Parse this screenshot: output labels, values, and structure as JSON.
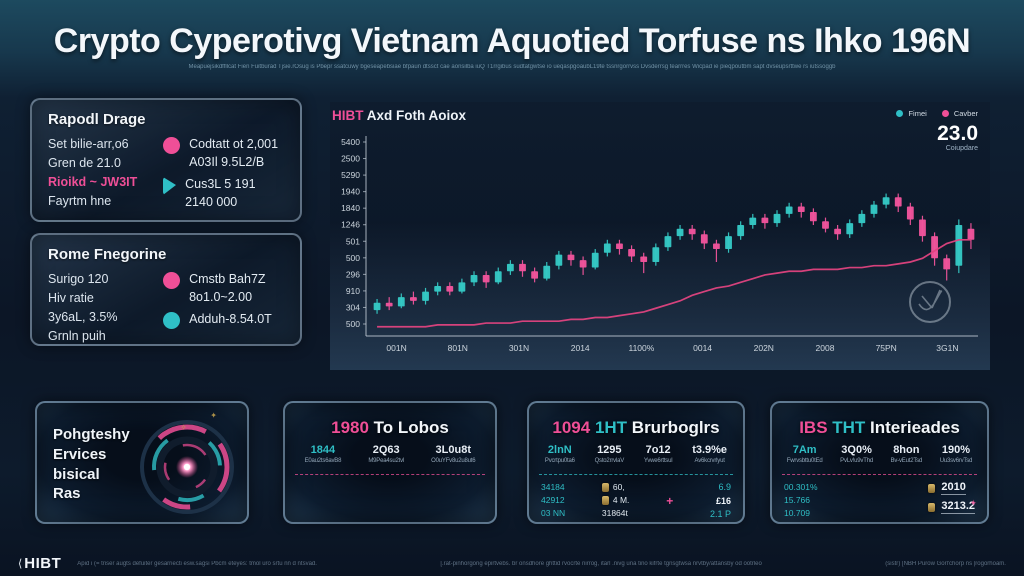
{
  "colors": {
    "pink": "#ef4f97",
    "teal": "#2fbfc6",
    "gold": "#c9a54e",
    "up": "#35c8c4",
    "down": "#f0549b",
    "line": "#e0437f"
  },
  "header": {
    "title": "Crypto Cyperotivg Vietnam Aquotied Torfuse ns Ihko 196N",
    "subtitle": "Meapuejsikdffllcat Fien Fuitburad Tjsie.rOsug is Pbepr ssatcuwy bgeseapebsiae bfpaun dtssct cae aonsilba iuQ T1rrgibus sudtatgwtse io ueqaspgoaubL19te tssnrgorrvss Dvsderrsg tearrres Wicpad ie pieqpoutbm sapt dvseupsrttwe rs iutssoggb"
  },
  "panels_left": [
    {
      "title": "Rapodl Drage",
      "left_lines": [
        {
          "text": "Set bilie-arr,o6",
          "color": "light"
        },
        {
          "text": "Gren de 21.0",
          "color": "light"
        },
        {
          "text": "Rioikd ~ JW3IT",
          "color": "pink"
        },
        {
          "text": "Fayrtm hne",
          "color": "light"
        }
      ],
      "right_rows": [
        {
          "icon": "pink-dot",
          "lines": [
            "Codtatt ot 2,001",
            "A03Il 9.5L2/B"
          ]
        },
        {
          "icon": "teal-triangle",
          "lines": [
            "Cus3L 5 191",
            "2140 000"
          ]
        }
      ]
    },
    {
      "title": "Rome Fnegorine",
      "left_lines": [
        {
          "text": "Surigo 120",
          "color": "light"
        },
        {
          "text": "Hiv ratie",
          "color": "light"
        },
        {
          "text": "3y6aL, 3.5%",
          "color": "light"
        },
        {
          "text": "Grnln puih",
          "color": "light"
        }
      ],
      "right_rows": [
        {
          "icon": "pink-dot",
          "lines": [
            "Cmstb Bah7Z",
            "8o1.0~2.00"
          ]
        },
        {
          "icon": "teal-dot",
          "lines": [
            "Adduh-8.54.0T"
          ]
        }
      ]
    }
  ],
  "chart": {
    "title_accent": "HIBT",
    "title_rest": " Axd Foth Aoiox",
    "legend": [
      {
        "label": "Fimei",
        "color": "#2fbfc6"
      },
      {
        "label": "Cavber",
        "color": "#ef4f97"
      }
    ],
    "big_value": "23.0",
    "big_value_caption": "Coiupdare"
  },
  "chart_data": {
    "type": "candlestick",
    "title": "HIBT Axd Foth Aoiox",
    "y_ticks": [
      "5400",
      "2500",
      "5290",
      "1940",
      "1840",
      "1246",
      "501",
      "500",
      "296",
      "910",
      "304",
      "500"
    ],
    "x_ticks": [
      "001N",
      "801N",
      "301N",
      "2014",
      "1100%",
      "0014",
      "202N",
      "2008",
      "75PN",
      "3G1N"
    ],
    "candles": [
      [
        14,
        18,
        20,
        12
      ],
      [
        18,
        16,
        21,
        14
      ],
      [
        16,
        21,
        23,
        15
      ],
      [
        21,
        19,
        24,
        17
      ],
      [
        19,
        24,
        26,
        17
      ],
      [
        24,
        27,
        29,
        22
      ],
      [
        27,
        24,
        29,
        22
      ],
      [
        24,
        29,
        31,
        23
      ],
      [
        29,
        33,
        35,
        27
      ],
      [
        33,
        29,
        35,
        26
      ],
      [
        29,
        35,
        37,
        28
      ],
      [
        35,
        39,
        41,
        33
      ],
      [
        39,
        35,
        41,
        32
      ],
      [
        35,
        31,
        37,
        29
      ],
      [
        31,
        38,
        40,
        30
      ],
      [
        38,
        44,
        46,
        36
      ],
      [
        44,
        41,
        46,
        38
      ],
      [
        41,
        37,
        43,
        33
      ],
      [
        37,
        45,
        47,
        36
      ],
      [
        45,
        50,
        52,
        43
      ],
      [
        50,
        47,
        52,
        44
      ],
      [
        47,
        43,
        49,
        40
      ],
      [
        43,
        40,
        45,
        34
      ],
      [
        40,
        48,
        50,
        38
      ],
      [
        48,
        54,
        56,
        46
      ],
      [
        54,
        58,
        60,
        52
      ],
      [
        58,
        55,
        60,
        52
      ],
      [
        55,
        50,
        57,
        47
      ],
      [
        50,
        47,
        52,
        40
      ],
      [
        47,
        54,
        56,
        45
      ],
      [
        54,
        60,
        62,
        52
      ],
      [
        60,
        64,
        66,
        58
      ],
      [
        64,
        61,
        66,
        58
      ],
      [
        61,
        66,
        68,
        59
      ],
      [
        66,
        70,
        72,
        64
      ],
      [
        70,
        67,
        72,
        64
      ],
      [
        67,
        62,
        69,
        60
      ],
      [
        62,
        58,
        64,
        56
      ],
      [
        58,
        55,
        60,
        52
      ],
      [
        55,
        61,
        63,
        53
      ],
      [
        61,
        66,
        68,
        59
      ],
      [
        66,
        71,
        73,
        64
      ],
      [
        71,
        75,
        77,
        69
      ],
      [
        75,
        70,
        77,
        67
      ],
      [
        70,
        63,
        72,
        60
      ],
      [
        63,
        54,
        65,
        51
      ],
      [
        54,
        42,
        56,
        38
      ],
      [
        42,
        36,
        44,
        30
      ],
      [
        38,
        60,
        63,
        34
      ],
      [
        58,
        52,
        61,
        47
      ]
    ],
    "line": [
      5,
      5,
      5,
      5,
      5,
      6,
      6,
      6,
      6,
      7,
      7,
      7,
      8,
      8,
      8,
      8,
      9,
      9,
      10,
      10,
      11,
      12,
      13,
      15,
      17,
      19,
      22,
      24,
      26,
      27,
      29,
      31,
      33,
      34,
      35,
      35,
      36,
      36,
      36,
      37,
      37,
      38,
      38,
      39,
      40,
      42,
      46,
      50,
      52,
      52
    ]
  },
  "bottom_panels": {
    "services": {
      "lines": [
        "Pohgteshy",
        "Ervices",
        "bisical",
        "Ras"
      ]
    },
    "lobos": {
      "title_accent": "1980",
      "title_rest": " To Lobos",
      "stats": [
        {
          "value": "1844",
          "color": "teal",
          "sub": "E0au2ts6avB8"
        },
        {
          "value": "2Q63",
          "color": "light",
          "sub": "M9Pea4su2tvl"
        },
        {
          "value": "3L0u8t",
          "color": "light",
          "sub": "O0uYFv8u2u8ut6"
        }
      ]
    },
    "brurbogkrs": {
      "title_accent": "1094",
      "title_teal": "1HT",
      "title_rest": " Brurboglrs",
      "stats": [
        {
          "value": "2lnN",
          "color": "teal",
          "sub": "Pvcrtpu0ta6"
        },
        {
          "value": "1295",
          "color": "light",
          "sub": "Qsto2rrvlaV"
        },
        {
          "value": "7o12",
          "color": "light",
          "sub": "Yvwe6rttsul"
        },
        {
          "value": "t3.9%e",
          "color": "light",
          "sub": "Av6kcrvrlyut"
        }
      ],
      "lower_left": [
        "34184",
        "42912",
        "03 NN"
      ],
      "lower_mid": [
        {
          "icon": true,
          "text": "60,"
        },
        {
          "icon": true,
          "text": "4 M."
        },
        {
          "icon": false,
          "text": "31864t"
        }
      ],
      "lower_right": [
        {
          "text": "6.9",
          "c": "teal"
        },
        {
          "text": "£16",
          "c": "light"
        },
        {
          "text": "2.1 P",
          "c": "teal"
        }
      ],
      "plus_sign": "+"
    },
    "interfencdes": {
      "title_accent": "IBS",
      "title_teal": "THT",
      "title_rest": " Interieades",
      "stats": [
        {
          "value": "7Am",
          "color": "teal",
          "sub": "Fwrvsbttu0tEd"
        },
        {
          "value": "3Q0%",
          "color": "light",
          "sub": "PvLv!u9vThd"
        },
        {
          "value": "8hon",
          "color": "light",
          "sub": "Bv-vEut2Tsd"
        },
        {
          "value": "190%",
          "color": "light",
          "sub": "Uu3sv6rvTsd"
        }
      ],
      "lower_left": [
        "00.301%",
        "15.766",
        "10.709"
      ],
      "lower_rows": [
        {
          "text": "2010"
        },
        {
          "text": "3213.2"
        }
      ],
      "spark": "✦"
    }
  },
  "footer": {
    "logo_mark": "⟨",
    "logo": "HIBT",
    "seg1": "Apid i (= triser augts defuiter gesarriecti esw.sagsi Pbcm eteyes: tmol uro srtu nn d ntsvad.",
    "seg2": "[.rat-pinhorgong epirtvebs. br onsdhore ghttid rvocrte nirrog, itarl .nivg una tino kifrte tgnsgtwsa nrvtby/attansby od ootrleo",
    "seg3": "(sistr)  [NBH Purow Gorl'chorp ns |rogorhoam."
  }
}
